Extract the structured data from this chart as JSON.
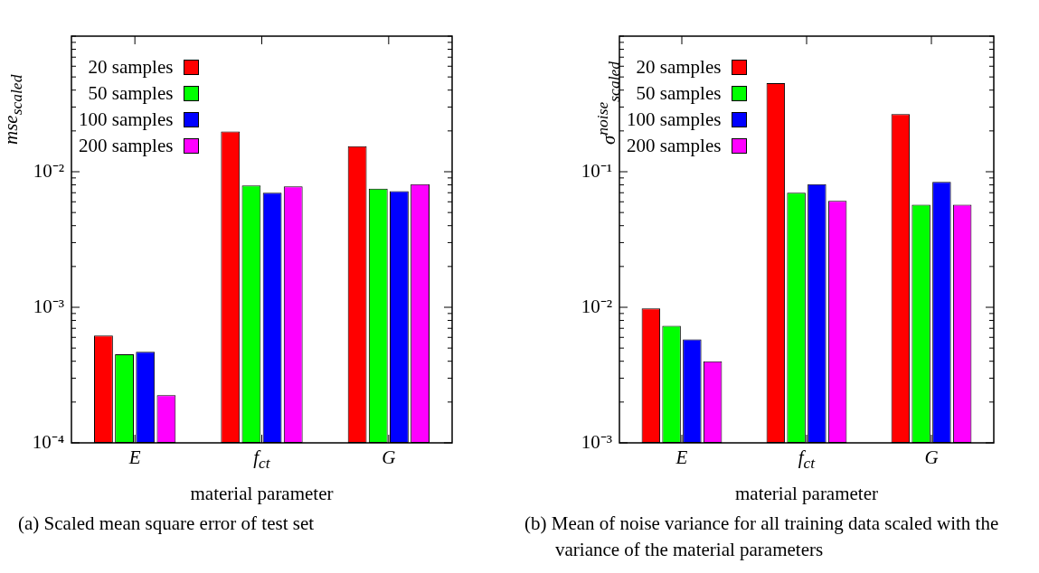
{
  "chart_data": [
    {
      "type": "bar",
      "xlabel": "material parameter",
      "ylabel": "mse$_{scaled}$",
      "categories": [
        "E",
        "f$_{ct}$",
        "G"
      ],
      "series": [
        {
          "name": "20 samples",
          "color": "#ff0000",
          "values": [
            0.00062,
            0.0198,
            0.0154
          ]
        },
        {
          "name": "50 samples",
          "color": "#00ff00",
          "values": [
            0.00045,
            0.0079,
            0.0075
          ]
        },
        {
          "name": "100 samples",
          "color": "#0000ff",
          "values": [
            0.00047,
            0.007,
            0.0072
          ]
        },
        {
          "name": "200 samples",
          "color": "#ff00ff",
          "values": [
            0.000225,
            0.0078,
            0.0081
          ]
        }
      ],
      "log": "y",
      "ylim": [
        0.0001,
        0.1
      ],
      "yticks": [
        {
          "value": 0.0001,
          "label": "10⁻⁴"
        },
        {
          "value": 0.0002,
          "label": null
        },
        {
          "value": 0.0003,
          "label": null
        },
        {
          "value": 0.0004,
          "label": null
        },
        {
          "value": 0.0005,
          "label": null
        },
        {
          "value": 0.0006,
          "label": null
        },
        {
          "value": 0.0007,
          "label": null
        },
        {
          "value": 0.0008,
          "label": null
        },
        {
          "value": 0.0009,
          "label": null
        },
        {
          "value": 0.001,
          "label": "10⁻³"
        },
        {
          "value": 0.002,
          "label": null
        },
        {
          "value": 0.003,
          "label": null
        },
        {
          "value": 0.004,
          "label": null
        },
        {
          "value": 0.005,
          "label": null
        },
        {
          "value": 0.006,
          "label": null
        },
        {
          "value": 0.007,
          "label": null
        },
        {
          "value": 0.008,
          "label": null
        },
        {
          "value": 0.009,
          "label": null
        },
        {
          "value": 0.01,
          "label": "10⁻²"
        },
        {
          "value": 0.02,
          "label": null
        },
        {
          "value": 0.03,
          "label": null
        },
        {
          "value": 0.04,
          "label": null
        },
        {
          "value": 0.05,
          "label": null
        },
        {
          "value": 0.06,
          "label": null
        },
        {
          "value": 0.07,
          "label": null
        },
        {
          "value": 0.08,
          "label": null
        },
        {
          "value": 0.09,
          "label": null
        },
        {
          "value": 0.1,
          "label": null
        }
      ],
      "legend": "top left",
      "grid": false,
      "annotations": [
        "(a) Scaled mean square error of test set"
      ]
    },
    {
      "type": "bar",
      "xlabel": "material parameter",
      "ylabel": "σ$^{noise}$$_{scaled}$",
      "categories": [
        "E",
        "f$_{ct}$",
        "G"
      ],
      "series": [
        {
          "name": "20 samples",
          "color": "#ff0000",
          "values": [
            0.0098,
            0.45,
            0.266
          ]
        },
        {
          "name": "50 samples",
          "color": "#00ff00",
          "values": [
            0.0073,
            0.07,
            0.057
          ]
        },
        {
          "name": "100 samples",
          "color": "#0000ff",
          "values": [
            0.0058,
            0.081,
            0.084
          ]
        },
        {
          "name": "200 samples",
          "color": "#ff00ff",
          "values": [
            0.004,
            0.061,
            0.057
          ]
        }
      ],
      "log": "y",
      "ylim": [
        0.001,
        1
      ],
      "yticks": [
        {
          "value": 0.001,
          "label": "10⁻³"
        },
        {
          "value": 0.002,
          "label": null
        },
        {
          "value": 0.003,
          "label": null
        },
        {
          "value": 0.004,
          "label": null
        },
        {
          "value": 0.005,
          "label": null
        },
        {
          "value": 0.006,
          "label": null
        },
        {
          "value": 0.007,
          "label": null
        },
        {
          "value": 0.008,
          "label": null
        },
        {
          "value": 0.009,
          "label": null
        },
        {
          "value": 0.01,
          "label": "10⁻²"
        },
        {
          "value": 0.02,
          "label": null
        },
        {
          "value": 0.03,
          "label": null
        },
        {
          "value": 0.04,
          "label": null
        },
        {
          "value": 0.05,
          "label": null
        },
        {
          "value": 0.06,
          "label": null
        },
        {
          "value": 0.07,
          "label": null
        },
        {
          "value": 0.08,
          "label": null
        },
        {
          "value": 0.09,
          "label": null
        },
        {
          "value": 0.1,
          "label": "10⁻¹"
        },
        {
          "value": 0.2,
          "label": null
        },
        {
          "value": 0.3,
          "label": null
        },
        {
          "value": 0.4,
          "label": null
        },
        {
          "value": 0.5,
          "label": null
        },
        {
          "value": 0.6,
          "label": null
        },
        {
          "value": 0.7,
          "label": null
        },
        {
          "value": 0.8,
          "label": null
        },
        {
          "value": 0.9,
          "label": null
        },
        {
          "value": 1,
          "label": null
        }
      ],
      "legend": "top left",
      "grid": false,
      "annotations": [
        "(b) Mean of noise variance for all training data scaled with the variance of the material parameters"
      ]
    }
  ]
}
